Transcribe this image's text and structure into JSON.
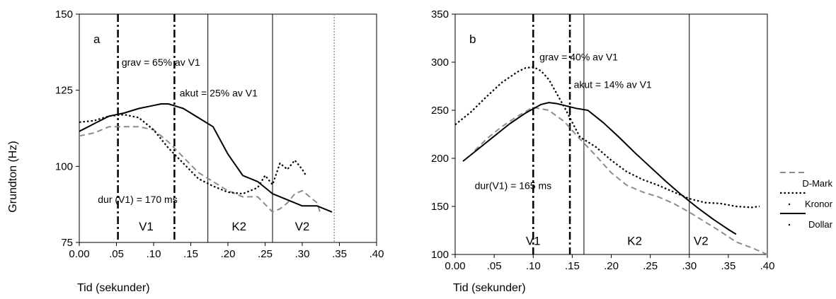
{
  "figure": {
    "ylabel": "Grundton (Hz)",
    "xlabel": "Tid (sekunder)"
  },
  "chart_data": [
    {
      "type": "line",
      "panel": "a",
      "xlabel": "Tid (sekunder)",
      "ylabel": "Grundton (Hz)",
      "xlim": [
        0,
        0.4
      ],
      "ylim": [
        75,
        150
      ],
      "x_ticks": [
        {
          "value": 0,
          "label": "0.00"
        },
        {
          "value": 0.05,
          "label": ".05"
        },
        {
          "value": 0.1,
          "label": ".10"
        },
        {
          "value": 0.15,
          "label": ".15"
        },
        {
          "value": 0.2,
          "label": ".20"
        },
        {
          "value": 0.25,
          "label": ".25"
        },
        {
          "value": 0.3,
          "label": ".30"
        },
        {
          "value": 0.35,
          "label": ".35"
        },
        {
          "value": 0.4,
          "label": ".40"
        }
      ],
      "y_ticks": [
        {
          "value": 75,
          "label": "75"
        },
        {
          "value": 100,
          "label": "100"
        },
        {
          "value": 125,
          "label": "125"
        },
        {
          "value": 150,
          "label": "150"
        }
      ],
      "vlines": [
        {
          "x": 0.052,
          "style": "dashdot"
        },
        {
          "x": 0.128,
          "style": "dashdot"
        },
        {
          "x": 0.173,
          "style": "solid"
        },
        {
          "x": 0.26,
          "style": "solid"
        },
        {
          "x": 0.343,
          "style": "dotted-gray"
        }
      ],
      "annotations": [
        {
          "text": "grav = 65% av V1",
          "x": 0.057,
          "y": 133
        },
        {
          "text": "akut = 25% av V1",
          "x": 0.135,
          "y": 123
        },
        {
          "text": "dur (V1) =  170 ms",
          "x": 0.025,
          "y": 88
        }
      ],
      "segments": [
        {
          "text": "V1",
          "x": 0.09,
          "y": 79
        },
        {
          "text": "K2",
          "x": 0.215,
          "y": 79
        },
        {
          "text": "V2",
          "x": 0.3,
          "y": 79
        }
      ],
      "series": [
        {
          "name": "D-Mark",
          "style": "dashed-gray",
          "color": "#8c8c8c",
          "x": [
            0.0,
            0.02,
            0.04,
            0.06,
            0.08,
            0.1,
            0.12,
            0.14,
            0.16,
            0.18,
            0.2,
            0.22,
            0.24,
            0.26,
            0.27,
            0.28,
            0.29,
            0.3,
            0.31,
            0.32,
            0.325
          ],
          "y": [
            110,
            111,
            113,
            113,
            113,
            112,
            108,
            103,
            98,
            95,
            92,
            90,
            90,
            85,
            86,
            88,
            91,
            92,
            90,
            88,
            84
          ]
        },
        {
          "name": "Kronor",
          "style": "dotted",
          "color": "#000000",
          "x": [
            0.0,
            0.02,
            0.04,
            0.06,
            0.08,
            0.1,
            0.12,
            0.14,
            0.16,
            0.18,
            0.2,
            0.22,
            0.24,
            0.25,
            0.26,
            0.27,
            0.28,
            0.29,
            0.3,
            0.305
          ],
          "y": [
            114.5,
            115,
            116.5,
            117,
            116,
            112,
            106,
            101,
            96,
            93.5,
            91.5,
            91,
            93,
            97,
            94,
            101,
            99,
            102,
            99,
            97
          ]
        },
        {
          "name": "Dollar",
          "style": "solid",
          "color": "#000000",
          "x": [
            0.0,
            0.02,
            0.04,
            0.06,
            0.08,
            0.1,
            0.11,
            0.12,
            0.14,
            0.16,
            0.18,
            0.2,
            0.22,
            0.24,
            0.26,
            0.28,
            0.3,
            0.32,
            0.34
          ],
          "y": [
            111.5,
            114,
            116.5,
            117.5,
            119,
            120,
            120.5,
            120.5,
            119,
            116,
            113,
            104,
            97,
            95,
            91,
            89,
            87,
            87,
            85
          ]
        }
      ]
    },
    {
      "type": "line",
      "panel": "b",
      "xlabel": "Tid (sekunder)",
      "ylabel": "",
      "xlim": [
        0,
        0.4
      ],
      "ylim": [
        100,
        350
      ],
      "x_ticks": [
        {
          "value": 0,
          "label": "0.00"
        },
        {
          "value": 0.05,
          "label": ".05"
        },
        {
          "value": 0.1,
          "label": ".10"
        },
        {
          "value": 0.15,
          "label": ".15"
        },
        {
          "value": 0.2,
          "label": ".20"
        },
        {
          "value": 0.25,
          "label": ".25"
        },
        {
          "value": 0.3,
          "label": ".30"
        },
        {
          "value": 0.35,
          "label": ".35"
        },
        {
          "value": 0.4,
          "label": ".40"
        }
      ],
      "y_ticks": [
        {
          "value": 100,
          "label": "100"
        },
        {
          "value": 150,
          "label": "150"
        },
        {
          "value": 200,
          "label": "200"
        },
        {
          "value": 250,
          "label": "250"
        },
        {
          "value": 300,
          "label": "300"
        },
        {
          "value": 350,
          "label": "350"
        }
      ],
      "vlines": [
        {
          "x": 0.1,
          "style": "dashdot"
        },
        {
          "x": 0.147,
          "style": "dashdot"
        },
        {
          "x": 0.165,
          "style": "solid"
        },
        {
          "x": 0.3,
          "style": "solid"
        }
      ],
      "annotations": [
        {
          "text": "grav = 40% av V1",
          "x": 0.108,
          "y": 302
        },
        {
          "text": "akut = 14% av V1",
          "x": 0.152,
          "y": 273
        },
        {
          "text": "dur(V1) = 165 ms",
          "x": 0.025,
          "y": 168
        }
      ],
      "segments": [
        {
          "text": "V1",
          "x": 0.1,
          "y": 110
        },
        {
          "text": "K2",
          "x": 0.23,
          "y": 110
        },
        {
          "text": "V2",
          "x": 0.315,
          "y": 110
        }
      ],
      "series": [
        {
          "name": "D-Mark",
          "style": "dashed-gray",
          "color": "#8c8c8c",
          "x": [
            0.025,
            0.04,
            0.06,
            0.08,
            0.1,
            0.12,
            0.14,
            0.16,
            0.18,
            0.2,
            0.22,
            0.24,
            0.26,
            0.28,
            0.3,
            0.32,
            0.34,
            0.36,
            0.38,
            0.4
          ],
          "y": [
            208,
            220,
            233,
            244,
            253,
            250,
            238,
            220,
            203,
            185,
            172,
            165,
            160,
            153,
            144,
            134,
            124,
            113,
            107,
            100
          ]
        },
        {
          "name": "Kronor",
          "style": "dotted",
          "color": "#000000",
          "x": [
            0.0,
            0.02,
            0.04,
            0.06,
            0.08,
            0.09,
            0.1,
            0.11,
            0.12,
            0.14,
            0.16,
            0.18,
            0.2,
            0.22,
            0.24,
            0.26,
            0.28,
            0.3,
            0.32,
            0.34,
            0.36,
            0.38,
            0.39
          ],
          "y": [
            235,
            248,
            264,
            279,
            290,
            294,
            295,
            291,
            282,
            253,
            222,
            212,
            198,
            186,
            178,
            172,
            165,
            158,
            154,
            153,
            150,
            149,
            150
          ]
        },
        {
          "name": "Dollar",
          "style": "solid",
          "color": "#000000",
          "x": [
            0.01,
            0.03,
            0.05,
            0.07,
            0.09,
            0.11,
            0.12,
            0.13,
            0.14,
            0.155,
            0.17,
            0.19,
            0.21,
            0.23,
            0.25,
            0.27,
            0.29,
            0.31,
            0.33,
            0.35,
            0.36
          ],
          "y": [
            197,
            210,
            223,
            236,
            247,
            256,
            258,
            257,
            255,
            252,
            250,
            237,
            222,
            206,
            191,
            176,
            162,
            149,
            137,
            126,
            121
          ]
        }
      ]
    }
  ],
  "legend": [
    {
      "label": "D-Mark",
      "style": "dashed-gray"
    },
    {
      "label": "Kronor",
      "style": "dotted"
    },
    {
      "label": "Dollar",
      "style": "solid"
    }
  ]
}
